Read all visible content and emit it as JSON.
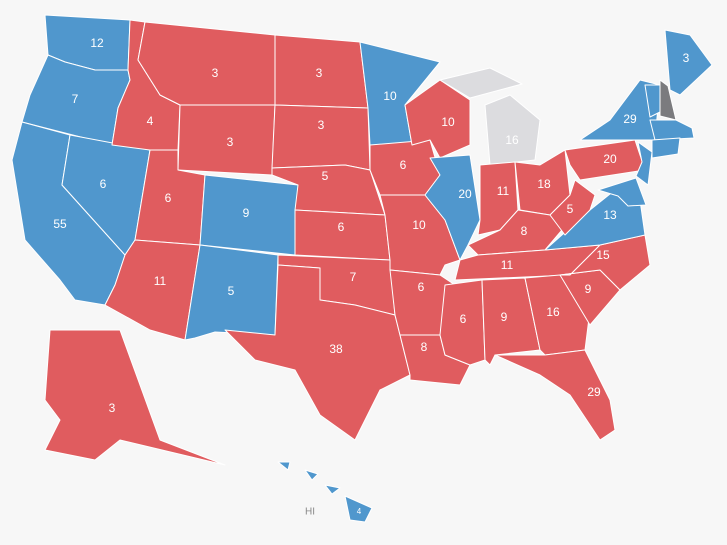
{
  "states": [
    {
      "votes": 12,
      "color": "#5097cd"
    },
    {
      "votes": 7,
      "color": "#5097cd"
    },
    {
      "votes": 55,
      "color": "#5097cd"
    },
    {
      "votes": 6,
      "color": "#5097cd"
    },
    {
      "votes": 4,
      "color": "#e05c5f"
    },
    {
      "votes": 3,
      "color": "#e05c5f"
    },
    {
      "votes": 3,
      "color": "#e05c5f"
    },
    {
      "votes": 6,
      "color": "#e05c5f"
    },
    {
      "votes": 11,
      "color": "#e05c5f"
    },
    {
      "votes": 9,
      "color": "#5097cd"
    },
    {
      "votes": 5,
      "color": "#5097cd"
    },
    {
      "votes": 3,
      "color": "#e05c5f"
    },
    {
      "votes": 3,
      "color": "#e05c5f"
    },
    {
      "votes": 5,
      "color": "#e05c5f"
    },
    {
      "votes": 6,
      "color": "#e05c5f"
    },
    {
      "votes": 7,
      "color": "#e05c5f"
    },
    {
      "votes": 38,
      "color": "#e05c5f"
    },
    {
      "votes": 10,
      "color": "#5097cd"
    },
    {
      "votes": 6,
      "color": "#e05c5f"
    },
    {
      "votes": 10,
      "color": "#e05c5f"
    },
    {
      "votes": 6,
      "color": "#e05c5f"
    },
    {
      "votes": 8,
      "color": "#e05c5f"
    },
    {
      "votes": 10,
      "color": "#e05c5f"
    },
    {
      "votes": 20,
      "color": "#5097cd"
    },
    {
      "votes": 16,
      "color": "#dcdcdf"
    },
    {
      "votes": 11,
      "color": "#e05c5f"
    },
    {
      "votes": 18,
      "color": "#e05c5f"
    },
    {
      "votes": 8,
      "color": "#e05c5f"
    },
    {
      "votes": 11,
      "color": "#e05c5f"
    },
    {
      "votes": 6,
      "color": "#e05c5f"
    },
    {
      "votes": 9,
      "color": "#e05c5f"
    },
    {
      "votes": 16,
      "color": "#e05c5f"
    },
    {
      "votes": 29,
      "color": "#e05c5f"
    },
    {
      "votes": 9,
      "color": "#e05c5f"
    },
    {
      "votes": 15,
      "color": "#e05c5f"
    },
    {
      "votes": 13,
      "color": "#5097cd"
    },
    {
      "votes": 5,
      "color": "#e05c5f"
    },
    {
      "votes": 20,
      "color": "#e05c5f"
    },
    {
      "votes": 29,
      "color": "#5097cd"
    },
    {
      "votes": 3,
      "color": "#5097cd"
    },
    {
      "votes": 3,
      "color": "#e05c5f"
    },
    {
      "votes": 4,
      "color": "#5097cd"
    }
  ],
  "hawaii_label": "HI"
}
